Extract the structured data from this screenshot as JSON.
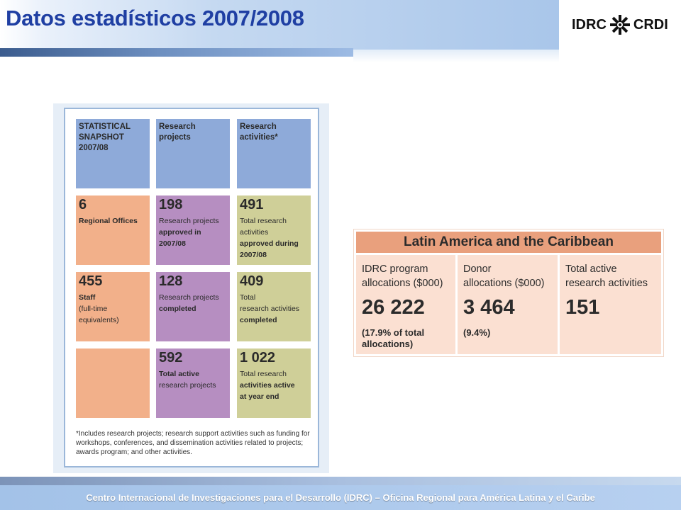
{
  "slide": {
    "title": "Datos estadísticos 2007/2008",
    "footer": "Centro Internacional de Investigaciones para el Desarrollo (IDRC) – Oficina Regional para América Latina y el Caribe"
  },
  "logo": {
    "left_text": "IDRC",
    "right_text": "CRDI",
    "icon": "idrc-star-icon"
  },
  "snapshot": {
    "headers": [
      "STATISTICAL SNAPSHOT 2007/08",
      "Research projects",
      "Research activities*"
    ],
    "rows": [
      [
        {
          "value": "6",
          "line1": "Regional Offices",
          "line2": "",
          "line3": "",
          "line4": ""
        },
        {
          "value": "198",
          "line1": "Research projects",
          "line2": "approved in",
          "line3": "2007/08",
          "line4": ""
        },
        {
          "value": "491",
          "line1": "Total research",
          "line2": "activities",
          "line3": "approved during",
          "line4": "2007/08"
        }
      ],
      [
        {
          "value": "455",
          "line1": "Staff",
          "line2": "(full-time",
          "line3": "equivalents)",
          "line4": ""
        },
        {
          "value": "128",
          "line1": "Research projects",
          "line2": "completed",
          "line3": "",
          "line4": ""
        },
        {
          "value": "409",
          "line1": "Total",
          "line2": "research activities",
          "line3": "completed",
          "line4": ""
        }
      ],
      [
        {
          "value": "",
          "line1": "",
          "line2": "",
          "line3": "",
          "line4": ""
        },
        {
          "value": "592",
          "line1": "Total active",
          "line2": "research projects",
          "line3": "",
          "line4": ""
        },
        {
          "value": "1 022",
          "line1": "Total research",
          "line2": "activities active",
          "line3": "at year end",
          "line4": ""
        }
      ]
    ],
    "footnote": "*Includes research projects; research support activities such as funding for workshops, conferences, and dissemination activities related to projects; awards program; and other activities."
  },
  "latin_america": {
    "title": "Latin America and the Caribbean",
    "columns": [
      {
        "label1": "IDRC program",
        "label2": "allocations ($000)",
        "value": "26 222",
        "note1": "(17.9% of total",
        "note2": "allocations)"
      },
      {
        "label1": "Donor",
        "label2": "allocations ($000)",
        "value": "3 464",
        "note1": "(9.4%)",
        "note2": ""
      },
      {
        "label1": "Total active",
        "label2": "research activities",
        "value": "151",
        "note1": "",
        "note2": ""
      }
    ]
  },
  "colors": {
    "title": "#1f3fa3",
    "header_blue": "#8eaad9",
    "cell_orange": "#f2b08a",
    "cell_purple": "#b68ec1",
    "cell_olive": "#cfcf98",
    "la_header": "#e9a07d",
    "la_cell": "#fbe0d2"
  }
}
